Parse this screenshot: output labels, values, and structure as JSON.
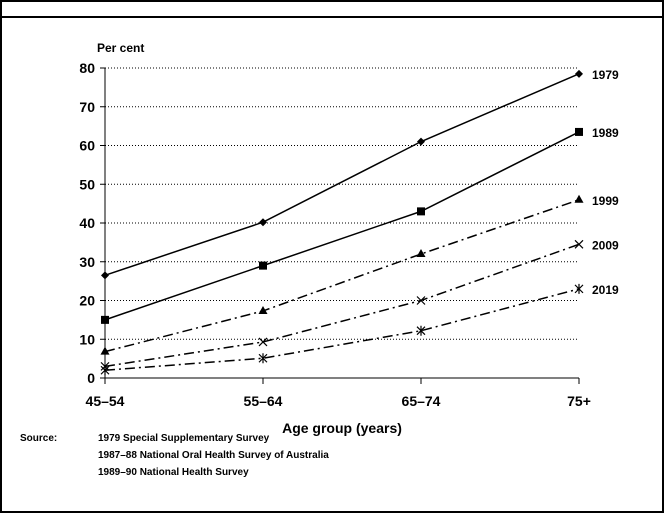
{
  "chart_data": {
    "type": "line",
    "title": "",
    "ylabel": "Per cent",
    "xlabel": "Age group (years)",
    "categories": [
      "45–54",
      "55–64",
      "65–74",
      "75+"
    ],
    "ylim": [
      0,
      80
    ],
    "yticks": [
      "0",
      "10",
      "20",
      "30",
      "40",
      "50",
      "60",
      "70",
      "80"
    ],
    "grid": "horizontal dotted",
    "series": [
      {
        "name": "1979",
        "values": [
          26.5,
          40.2,
          61.0,
          78.5
        ],
        "marker": "diamond",
        "dash": "solid"
      },
      {
        "name": "1989",
        "values": [
          15.0,
          29.0,
          43.0,
          63.5
        ],
        "marker": "square",
        "dash": "solid"
      },
      {
        "name": "1999",
        "values": [
          6.8,
          17.3,
          32.0,
          46.0
        ],
        "marker": "triangle",
        "dash": "dashdot"
      },
      {
        "name": "2009",
        "values": [
          3.0,
          9.3,
          20.0,
          34.5
        ],
        "marker": "x",
        "dash": "dashdot"
      },
      {
        "name": "2019",
        "values": [
          2.0,
          5.1,
          12.2,
          23.0
        ],
        "marker": "star",
        "dash": "dashdot"
      }
    ]
  },
  "source": {
    "label": "Source:",
    "lines": [
      "1979 Special Supplementary Survey",
      "1987–88 National Oral Health Survey of Australia",
      "1989–90 National Health Survey"
    ]
  }
}
